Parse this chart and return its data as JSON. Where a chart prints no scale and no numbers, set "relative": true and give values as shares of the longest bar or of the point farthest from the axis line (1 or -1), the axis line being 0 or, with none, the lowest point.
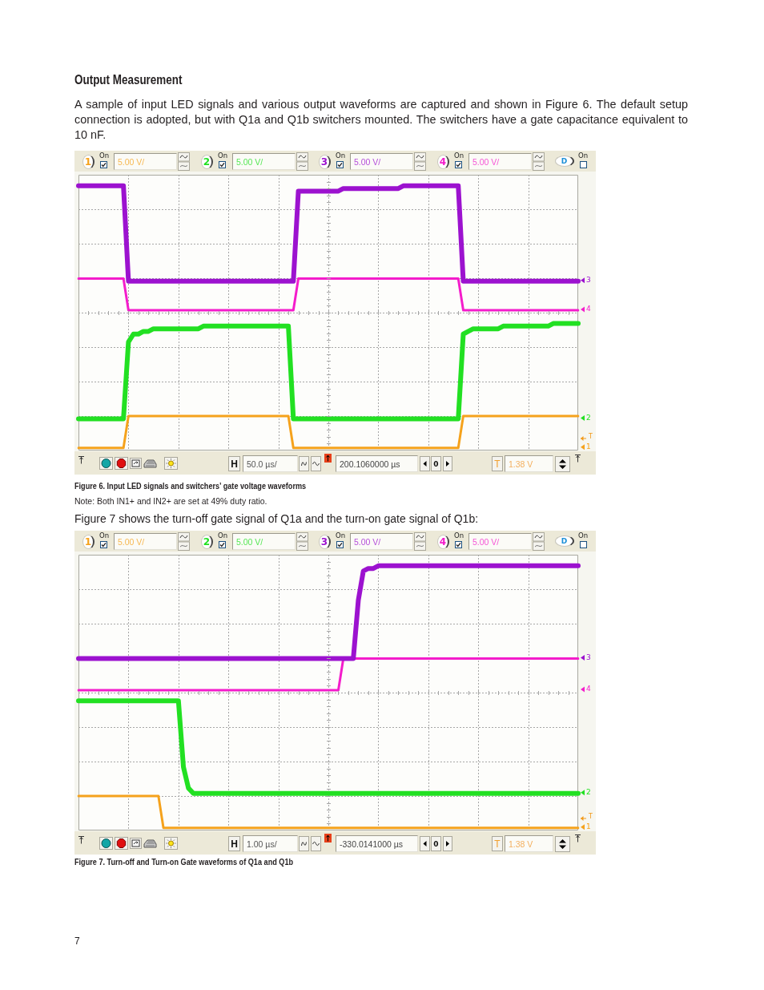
{
  "chart_data": [
    {
      "type": "line",
      "title": "Output Measurement",
      "subtitle": "A sample of input LED signals and various output waveforms are captured and shown in Figure 6. The default setup connection is adopted, but with Q1a and Q1b switchers mounted. The switchers have a gate capacitance equivalent to 10 nF.",
      "relative": true,
      "grid": true,
      "legend": "right",
      "categories": [
        null,
        null,
        null,
        null,
        null,
        null,
        null,
        null,
        null,
        null,
        null,
        null,
        null,
        null,
        null,
        null,
        null,
        null,
        null,
        null,
        null,
        null,
        null,
        null,
        null,
        null,
        null,
        null,
        null,
        null,
        null,
        null,
        null,
        null,
        null,
        null,
        null,
        null,
        null,
        null,
        null,
        null,
        null,
        null,
        null,
        null,
        null,
        null,
        null,
        null,
        null,
        null,
        null,
        null,
        null,
        null,
        null,
        null,
        null,
        null,
        null,
        null,
        null,
        null,
        null,
        null,
        null,
        null,
        null,
        null,
        null,
        null,
        null,
        null,
        null,
        null,
        null,
        null,
        null,
        null,
        null,
        null,
        null,
        null,
        null,
        null,
        null,
        null,
        null,
        null,
        null,
        null,
        null,
        null,
        null,
        null,
        null,
        null,
        null,
        null,
        null
      ],
      "series": [
        {
          "name": "1",
          "color": "#f5a21c",
          "values": [
            0.01,
            0.01,
            0.01,
            0.01,
            0.01,
            0.01,
            0.01,
            0.01,
            0.01,
            0.01,
            0.13,
            0.13,
            0.13,
            0.13,
            0.13,
            0.13,
            0.13,
            0.13,
            0.13,
            0.13,
            0.13,
            0.13,
            0.13,
            0.13,
            0.13,
            0.13,
            0.13,
            0.13,
            0.13,
            0.13,
            0.13,
            0.13,
            0.13,
            0.13,
            0.13,
            0.13,
            0.13,
            0.13,
            0.13,
            0.13,
            0.13,
            0.13,
            0.13,
            0.01,
            0.01,
            0.01,
            0.01,
            0.01,
            0.01,
            0.01,
            0.01,
            0.01,
            0.01,
            0.01,
            0.01,
            0.01,
            0.01,
            0.01,
            0.01,
            0.01,
            0.01,
            0.01,
            0.01,
            0.01,
            0.01,
            0.01,
            0.01,
            0.01,
            0.01,
            0.01,
            0.01,
            0.01,
            0.01,
            0.01,
            0.01,
            0.01,
            0.01,
            0.13,
            0.13,
            0.13,
            0.13,
            0.13,
            0.13,
            0.13,
            0.13,
            0.13,
            0.13,
            0.13,
            0.13,
            0.13,
            0.13,
            0.13,
            0.13,
            0.13,
            0.13,
            0.13,
            0.13,
            0.13,
            0.13,
            0.13,
            0.13
          ]
        },
        {
          "name": "2",
          "color": "#22e022",
          "values": [
            0.12,
            0.12,
            0.12,
            0.12,
            0.12,
            0.12,
            0.12,
            0.12,
            0.12,
            0.12,
            0.41,
            0.44,
            0.44,
            0.45,
            0.45,
            0.46,
            0.46,
            0.46,
            0.46,
            0.46,
            0.46,
            0.46,
            0.46,
            0.46,
            0.46,
            0.47,
            0.47,
            0.47,
            0.47,
            0.47,
            0.47,
            0.47,
            0.47,
            0.47,
            0.47,
            0.47,
            0.47,
            0.47,
            0.47,
            0.47,
            0.47,
            0.47,
            0.47,
            0.12,
            0.12,
            0.12,
            0.12,
            0.12,
            0.12,
            0.12,
            0.12,
            0.12,
            0.12,
            0.12,
            0.12,
            0.12,
            0.12,
            0.12,
            0.12,
            0.12,
            0.12,
            0.12,
            0.12,
            0.12,
            0.12,
            0.12,
            0.12,
            0.12,
            0.12,
            0.12,
            0.12,
            0.12,
            0.12,
            0.12,
            0.12,
            0.12,
            0.12,
            0.44,
            0.45,
            0.46,
            0.46,
            0.46,
            0.46,
            0.46,
            0.46,
            0.47,
            0.47,
            0.47,
            0.47,
            0.47,
            0.47,
            0.47,
            0.47,
            0.47,
            0.47,
            0.48,
            0.48,
            0.48,
            0.48,
            0.48,
            0.48
          ]
        },
        {
          "name": "3",
          "color": "#9c12cf",
          "values": [
            1,
            1,
            1,
            1,
            1,
            1,
            1,
            1,
            1,
            1,
            0.64,
            0.64,
            0.64,
            0.64,
            0.64,
            0.64,
            0.64,
            0.64,
            0.64,
            0.64,
            0.64,
            0.64,
            0.64,
            0.64,
            0.64,
            0.64,
            0.64,
            0.64,
            0.64,
            0.64,
            0.64,
            0.64,
            0.64,
            0.64,
            0.64,
            0.64,
            0.64,
            0.64,
            0.64,
            0.64,
            0.64,
            0.64,
            0.64,
            0.64,
            0.98,
            0.98,
            0.98,
            0.98,
            0.98,
            0.98,
            0.98,
            0.98,
            0.98,
            0.99,
            0.99,
            0.99,
            0.99,
            0.99,
            0.99,
            0.99,
            0.99,
            0.99,
            0.99,
            0.99,
            0.99,
            1,
            1,
            1,
            1,
            1,
            1,
            1,
            1,
            1,
            1,
            1,
            1,
            0.64,
            0.64,
            0.64,
            0.64,
            0.64,
            0.64,
            0.64,
            0.64,
            0.64,
            0.64,
            0.64,
            0.64,
            0.64,
            0.64,
            0.64,
            0.64,
            0.64,
            0.64,
            0.64,
            0.64,
            0.64,
            0.64,
            0.64,
            0.64
          ]
        },
        {
          "name": "4",
          "color": "#f41ccb",
          "values": [
            0.65,
            0.65,
            0.65,
            0.65,
            0.65,
            0.65,
            0.65,
            0.65,
            0.65,
            0.65,
            0.53,
            0.53,
            0.53,
            0.53,
            0.53,
            0.53,
            0.53,
            0.53,
            0.53,
            0.53,
            0.53,
            0.53,
            0.53,
            0.53,
            0.53,
            0.53,
            0.53,
            0.53,
            0.53,
            0.53,
            0.53,
            0.53,
            0.53,
            0.53,
            0.53,
            0.53,
            0.53,
            0.53,
            0.53,
            0.53,
            0.53,
            0.53,
            0.53,
            0.53,
            0.65,
            0.65,
            0.65,
            0.65,
            0.65,
            0.65,
            0.65,
            0.65,
            0.65,
            0.65,
            0.65,
            0.65,
            0.65,
            0.65,
            0.65,
            0.65,
            0.65,
            0.65,
            0.65,
            0.65,
            0.65,
            0.65,
            0.65,
            0.65,
            0.65,
            0.65,
            0.65,
            0.65,
            0.65,
            0.65,
            0.65,
            0.65,
            0.65,
            0.53,
            0.53,
            0.53,
            0.53,
            0.53,
            0.53,
            0.53,
            0.53,
            0.53,
            0.53,
            0.53,
            0.53,
            0.53,
            0.53,
            0.53,
            0.53,
            0.53,
            0.53,
            0.53,
            0.53,
            0.53,
            0.53,
            0.53,
            0.53
          ]
        }
      ],
      "annotations": [
        "On",
        "5.00 V/",
        "On",
        "5.00 V/",
        "On",
        "5.00 V/",
        "On",
        "5.00 V/",
        "D",
        "On",
        "H",
        "50.0 µs/",
        "200.1060000 µs",
        "0",
        "T",
        "1.38 V",
        "T",
        "Figure 6. Input LED signals and switchers’ gate voltage waveforms",
        "Note: Both IN1+ and IN2+ are set at 49% duty ratio."
      ]
    },
    {
      "type": "line",
      "subtitle": "Figure 7 shows the turn-off gate signal of Q1a and the turn-on gate signal of Q1b:",
      "relative": true,
      "grid": true,
      "legend": "right",
      "categories": [
        null,
        null,
        null,
        null,
        null,
        null,
        null,
        null,
        null,
        null,
        null,
        null,
        null,
        null,
        null,
        null,
        null,
        null,
        null,
        null,
        null,
        null,
        null,
        null,
        null,
        null,
        null,
        null,
        null,
        null,
        null,
        null,
        null,
        null,
        null,
        null,
        null,
        null,
        null,
        null,
        null,
        null,
        null,
        null,
        null,
        null,
        null,
        null,
        null,
        null,
        null,
        null,
        null,
        null,
        null,
        null,
        null,
        null,
        null,
        null,
        null,
        null,
        null,
        null,
        null,
        null,
        null,
        null,
        null,
        null,
        null,
        null,
        null,
        null,
        null,
        null,
        null,
        null,
        null,
        null,
        null,
        null,
        null,
        null,
        null,
        null,
        null,
        null,
        null,
        null,
        null,
        null,
        null,
        null,
        null,
        null,
        null,
        null,
        null,
        null,
        null
      ],
      "series": [
        {
          "name": "1",
          "color": "#f5a21c",
          "values": [
            0.13,
            0.13,
            0.13,
            0.13,
            0.13,
            0.13,
            0.13,
            0.13,
            0.13,
            0.13,
            0.13,
            0.13,
            0.13,
            0.13,
            0.13,
            0.13,
            0.13,
            0.01,
            0.01,
            0.01,
            0.01,
            0.01,
            0.01,
            0.01,
            0.01,
            0.01,
            0.01,
            0.01,
            0.01,
            0.01,
            0.01,
            0.01,
            0.01,
            0.01,
            0.01,
            0.01,
            0.01,
            0.01,
            0.01,
            0.01,
            0.01,
            0.01,
            0.01,
            0.01,
            0.01,
            0.01,
            0.01,
            0.01,
            0.01,
            0.01,
            0.01,
            0.01,
            0.01,
            0.01,
            0.01,
            0.01,
            0.01,
            0.01,
            0.01,
            0.01,
            0.01,
            0.01,
            0.01,
            0.01,
            0.01,
            0.01,
            0.01,
            0.01,
            0.01,
            0.01,
            0.01,
            0.01,
            0.01,
            0.01,
            0.01,
            0.01,
            0.01,
            0.01,
            0.01,
            0.01,
            0.01,
            0.01,
            0.01,
            0.01,
            0.01,
            0.01,
            0.01,
            0.01,
            0.01,
            0.01,
            0.01,
            0.01,
            0.01,
            0.01,
            0.01,
            0.01,
            0.01,
            0.01,
            0.01,
            0.01,
            0.01
          ]
        },
        {
          "name": "2",
          "color": "#22e022",
          "values": [
            0.49,
            0.49,
            0.49,
            0.49,
            0.49,
            0.49,
            0.49,
            0.49,
            0.49,
            0.49,
            0.49,
            0.49,
            0.49,
            0.49,
            0.49,
            0.49,
            0.49,
            0.49,
            0.49,
            0.49,
            0.49,
            0.24,
            0.16,
            0.14,
            0.14,
            0.14,
            0.14,
            0.14,
            0.14,
            0.14,
            0.14,
            0.14,
            0.14,
            0.14,
            0.14,
            0.14,
            0.14,
            0.14,
            0.14,
            0.14,
            0.14,
            0.14,
            0.14,
            0.14,
            0.14,
            0.14,
            0.14,
            0.14,
            0.14,
            0.14,
            0.14,
            0.14,
            0.14,
            0.14,
            0.14,
            0.14,
            0.14,
            0.14,
            0.14,
            0.14,
            0.14,
            0.14,
            0.14,
            0.14,
            0.14,
            0.14,
            0.14,
            0.14,
            0.14,
            0.14,
            0.14,
            0.14,
            0.14,
            0.14,
            0.14,
            0.14,
            0.14,
            0.14,
            0.14,
            0.14,
            0.14,
            0.14,
            0.14,
            0.14,
            0.14,
            0.14,
            0.14,
            0.14,
            0.14,
            0.14,
            0.14,
            0.14,
            0.14,
            0.14,
            0.14,
            0.14,
            0.14,
            0.14,
            0.14,
            0.14,
            0.14
          ]
        },
        {
          "name": "3",
          "color": "#9c12cf",
          "values": [
            0.65,
            0.65,
            0.65,
            0.65,
            0.65,
            0.65,
            0.65,
            0.65,
            0.65,
            0.65,
            0.65,
            0.65,
            0.65,
            0.65,
            0.65,
            0.65,
            0.65,
            0.65,
            0.65,
            0.65,
            0.65,
            0.65,
            0.65,
            0.65,
            0.65,
            0.65,
            0.65,
            0.65,
            0.65,
            0.65,
            0.65,
            0.65,
            0.65,
            0.65,
            0.65,
            0.65,
            0.65,
            0.65,
            0.65,
            0.65,
            0.65,
            0.65,
            0.65,
            0.65,
            0.65,
            0.65,
            0.65,
            0.65,
            0.65,
            0.65,
            0.65,
            0.65,
            0.65,
            0.65,
            0.65,
            0.65,
            0.87,
            0.98,
            0.99,
            0.99,
            1,
            1,
            1,
            1,
            1,
            1,
            1,
            1,
            1,
            1,
            1,
            1,
            1,
            1,
            1,
            1,
            1,
            1,
            1,
            1,
            1,
            1,
            1,
            1,
            1,
            1,
            1,
            1,
            1,
            1,
            1,
            1,
            1,
            1,
            1,
            1,
            1,
            1,
            1,
            1,
            1
          ]
        },
        {
          "name": "4",
          "color": "#f41ccb",
          "values": [
            0.53,
            0.53,
            0.53,
            0.53,
            0.53,
            0.53,
            0.53,
            0.53,
            0.53,
            0.53,
            0.53,
            0.53,
            0.53,
            0.53,
            0.53,
            0.53,
            0.53,
            0.53,
            0.53,
            0.53,
            0.53,
            0.53,
            0.53,
            0.53,
            0.53,
            0.53,
            0.53,
            0.53,
            0.53,
            0.53,
            0.53,
            0.53,
            0.53,
            0.53,
            0.53,
            0.53,
            0.53,
            0.53,
            0.53,
            0.53,
            0.53,
            0.53,
            0.53,
            0.53,
            0.53,
            0.53,
            0.53,
            0.53,
            0.53,
            0.53,
            0.53,
            0.53,
            0.53,
            0.65,
            0.65,
            0.65,
            0.65,
            0.65,
            0.65,
            0.65,
            0.65,
            0.65,
            0.65,
            0.65,
            0.65,
            0.65,
            0.65,
            0.65,
            0.65,
            0.65,
            0.65,
            0.65,
            0.65,
            0.65,
            0.65,
            0.65,
            0.65,
            0.65,
            0.65,
            0.65,
            0.65,
            0.65,
            0.65,
            0.65,
            0.65,
            0.65,
            0.65,
            0.65,
            0.65,
            0.65,
            0.65,
            0.65,
            0.65,
            0.65,
            0.65,
            0.65,
            0.65,
            0.65,
            0.65,
            0.65,
            0.65
          ]
        }
      ],
      "annotations": [
        "On",
        "5.00 V/",
        "On",
        "5.00 V/",
        "On",
        "5.00 V/",
        "On",
        "5.00 V/",
        "D",
        "On",
        "H",
        "1.00 µs/",
        "-330.0141000 µs",
        "0",
        "T",
        "1.38 V",
        "T",
        "Figure 7. Turn-off and Turn-on Gate waveforms of Q1a and Q1b",
        "7"
      ]
    }
  ]
}
